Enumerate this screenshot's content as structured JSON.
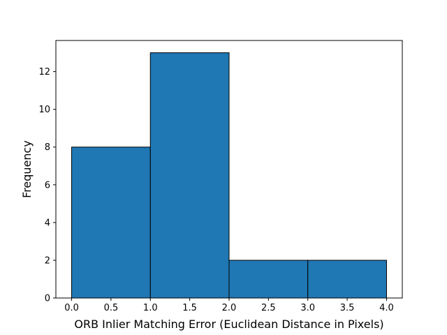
{
  "chart_data": {
    "type": "bar",
    "subtype": "histogram",
    "bin_edges": [
      0.0,
      1.0,
      2.0,
      3.0,
      4.0
    ],
    "values": [
      8,
      13,
      2,
      2
    ],
    "xlabel": "ORB Inlier Matching Error (Euclidean Distance in Pixels)",
    "ylabel": "Frequency",
    "xlim": [
      -0.2,
      4.2
    ],
    "ylim": [
      0,
      13.65
    ],
    "xticks": [
      0.0,
      0.5,
      1.0,
      1.5,
      2.0,
      2.5,
      3.0,
      3.5,
      4.0
    ],
    "xtick_labels": [
      "0.0",
      "0.5",
      "1.0",
      "1.5",
      "2.0",
      "2.5",
      "3.0",
      "3.5",
      "4.0"
    ],
    "yticks": [
      0,
      2,
      4,
      6,
      8,
      10,
      12
    ],
    "ytick_labels": [
      "0",
      "2",
      "4",
      "6",
      "8",
      "10",
      "12"
    ],
    "bar_color": "#1f77b4",
    "edge_color": "#000000",
    "grid": false,
    "legend": false
  }
}
